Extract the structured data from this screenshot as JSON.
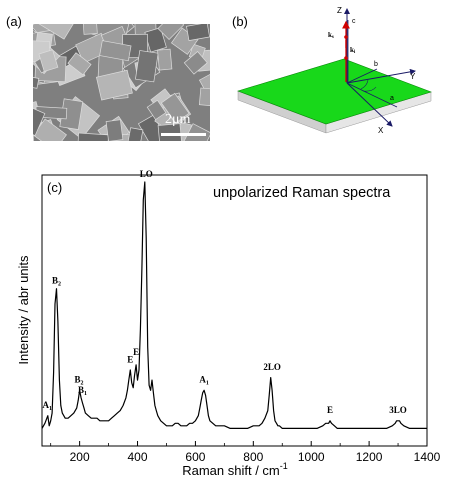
{
  "panels": {
    "a_label": "(a)",
    "b_label": "(b)",
    "c_label": "(c)"
  },
  "sem": {
    "scale_label": "2μm"
  },
  "geometry": {
    "axis_z": "Z",
    "axis_y": "Y",
    "axis_x": "X",
    "vec_c": "c",
    "vec_b": "b",
    "vec_a": "a",
    "k_s": "ks",
    "k_i": "ki",
    "crystal_color": "#18d81a"
  },
  "chart_data": {
    "type": "line",
    "title": "unpolarized Raman spectra",
    "xlabel": "Raman shift / cm",
    "xlabel_sup": "-1",
    "ylabel": "Intensity / abr units",
    "xlim": [
      70,
      1400
    ],
    "ylim": [
      0,
      1
    ],
    "xticks": [
      200,
      400,
      600,
      800,
      1000,
      1200,
      1400
    ],
    "grid": false,
    "series": [
      {
        "x": [
          70,
          80,
          90,
          95,
          100,
          105,
          110,
          115,
          120,
          125,
          130,
          135,
          140,
          150,
          160,
          170,
          180,
          190,
          195,
          200,
          205,
          210,
          215,
          220,
          230,
          240,
          250,
          260,
          270,
          280,
          290,
          300,
          310,
          320,
          330,
          340,
          350,
          360,
          365,
          370,
          375,
          380,
          385,
          390,
          395,
          400,
          405,
          410,
          415,
          420,
          425,
          430,
          435,
          440,
          445,
          450,
          455,
          460,
          465,
          470,
          480,
          490,
          500,
          510,
          520,
          530,
          540,
          550,
          560,
          570,
          580,
          590,
          600,
          610,
          615,
          620,
          625,
          630,
          635,
          640,
          645,
          650,
          660,
          670,
          680,
          690,
          700,
          720,
          740,
          760,
          780,
          800,
          820,
          830,
          840,
          850,
          855,
          860,
          865,
          870,
          875,
          880,
          885,
          890,
          900,
          920,
          940,
          960,
          980,
          1000,
          1020,
          1040,
          1050,
          1060,
          1065,
          1070,
          1080,
          1090,
          1100,
          1120,
          1140,
          1160,
          1180,
          1200,
          1220,
          1240,
          1260,
          1280,
          1290,
          1295,
          1300,
          1305,
          1310,
          1320,
          1340,
          1360,
          1380,
          1400
        ],
        "y": [
          0.03,
          0.05,
          0.08,
          0.04,
          0.06,
          0.09,
          0.25,
          0.52,
          0.58,
          0.45,
          0.22,
          0.12,
          0.09,
          0.07,
          0.07,
          0.08,
          0.09,
          0.11,
          0.14,
          0.18,
          0.15,
          0.13,
          0.11,
          0.09,
          0.08,
          0.07,
          0.07,
          0.07,
          0.06,
          0.06,
          0.06,
          0.06,
          0.07,
          0.08,
          0.09,
          0.1,
          0.12,
          0.15,
          0.18,
          0.22,
          0.26,
          0.21,
          0.19,
          0.24,
          0.28,
          0.22,
          0.26,
          0.42,
          0.66,
          0.93,
          1.0,
          0.78,
          0.35,
          0.2,
          0.18,
          0.22,
          0.17,
          0.12,
          0.1,
          0.08,
          0.06,
          0.05,
          0.04,
          0.04,
          0.04,
          0.05,
          0.05,
          0.04,
          0.04,
          0.04,
          0.05,
          0.05,
          0.06,
          0.08,
          0.11,
          0.14,
          0.17,
          0.18,
          0.16,
          0.12,
          0.08,
          0.06,
          0.05,
          0.04,
          0.04,
          0.04,
          0.04,
          0.03,
          0.03,
          0.03,
          0.03,
          0.04,
          0.04,
          0.05,
          0.07,
          0.1,
          0.16,
          0.23,
          0.18,
          0.1,
          0.06,
          0.05,
          0.04,
          0.04,
          0.03,
          0.03,
          0.03,
          0.03,
          0.03,
          0.03,
          0.03,
          0.04,
          0.05,
          0.05,
          0.06,
          0.05,
          0.04,
          0.03,
          0.03,
          0.03,
          0.03,
          0.03,
          0.03,
          0.03,
          0.03,
          0.03,
          0.03,
          0.04,
          0.05,
          0.06,
          0.06,
          0.06,
          0.05,
          0.04,
          0.03,
          0.03,
          0.03,
          0.03
        ]
      }
    ],
    "annotations": [
      {
        "text": "LO",
        "x": 430,
        "y": 1.0
      },
      {
        "text": "B",
        "sub": "2",
        "x": 120,
        "y": 0.58
      },
      {
        "text": "A",
        "sub": "1",
        "x": 88,
        "y": 0.09
      },
      {
        "text": "B",
        "sub": "2",
        "x": 198,
        "y": 0.19
      },
      {
        "text": "B",
        "sub": "1",
        "x": 210,
        "y": 0.15
      },
      {
        "text": "E",
        "x": 375,
        "y": 0.27
      },
      {
        "text": "E",
        "x": 395,
        "y": 0.3
      },
      {
        "text": "A",
        "sub": "1",
        "x": 630,
        "y": 0.19
      },
      {
        "text": "2LO",
        "x": 865,
        "y": 0.24
      },
      {
        "text": "E",
        "x": 1065,
        "y": 0.07
      },
      {
        "text": "3LO",
        "x": 1300,
        "y": 0.07
      }
    ]
  }
}
